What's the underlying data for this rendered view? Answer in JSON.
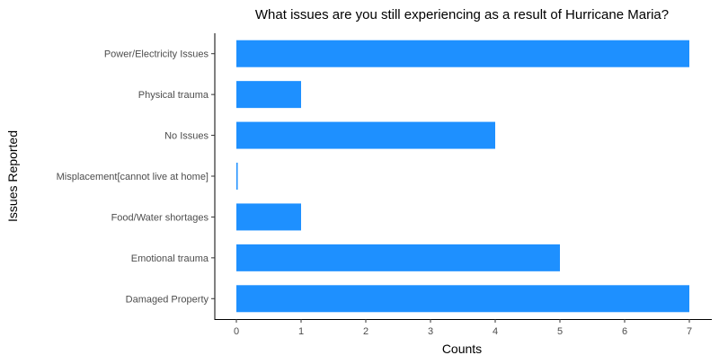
{
  "chart_data": {
    "type": "bar",
    "orientation": "horizontal",
    "title": "What issues are you still experiencing as a result of Hurricane Maria?",
    "xlabel": "Counts",
    "ylabel": "Issues Reported",
    "categories": [
      "Damaged Property",
      "Emotional trauma",
      "Food/Water shortages",
      "Misplacement[cannot live at home]",
      "No Issues",
      "Physical trauma",
      "Power/Electricity Issues"
    ],
    "values": [
      7,
      5,
      1,
      0,
      4,
      1,
      7
    ],
    "xlim": [
      0,
      7
    ],
    "xticks": [
      0,
      1,
      2,
      3,
      4,
      5,
      6,
      7
    ],
    "grid": false,
    "legend": "none",
    "bar_color": "#1E90FF"
  }
}
